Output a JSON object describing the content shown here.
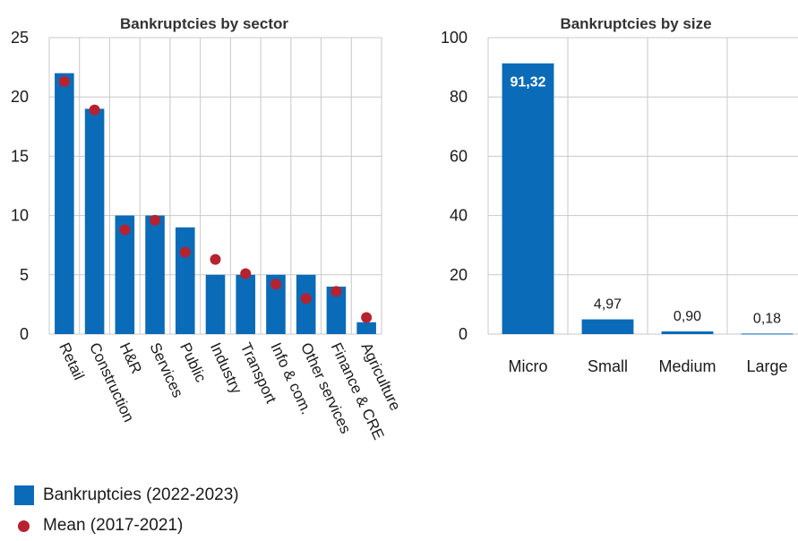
{
  "colors": {
    "bar": "#0a6bb8",
    "dot": "#b7222f",
    "grid": "#c8c8c8"
  },
  "legend": {
    "bar_label": "Bankruptcies (2022-2023)",
    "dot_label": "Mean (2017-2021)"
  },
  "chart_data": [
    {
      "type": "bar",
      "title": "Bankruptcies by sector",
      "categories": [
        "Retail",
        "Construction",
        "H&R",
        "Services",
        "Public",
        "Industry",
        "Transport",
        "Info & com.",
        "Other services",
        "Finance & CRE",
        "Agriculture"
      ],
      "series": [
        {
          "name": "Bankruptcies (2022-2023)",
          "type": "bar",
          "values": [
            22,
            19,
            10,
            10,
            9,
            5,
            5,
            5,
            5,
            4,
            1
          ]
        },
        {
          "name": "Mean (2017-2021)",
          "type": "scatter",
          "values": [
            21.3,
            18.9,
            8.8,
            9.6,
            6.9,
            6.3,
            5.1,
            4.2,
            3.0,
            3.6,
            1.4
          ]
        }
      ],
      "yticks": [
        "0",
        "5",
        "10",
        "15",
        "20",
        "25"
      ],
      "ylim": [
        0,
        25
      ],
      "grid": true
    },
    {
      "type": "bar",
      "title": "Bankruptcies by size",
      "categories": [
        "Micro",
        "Small",
        "Medium",
        "Large"
      ],
      "values": [
        91.32,
        4.97,
        0.9,
        0.18
      ],
      "data_labels": [
        "91,32",
        "4,97",
        "0,90",
        "0,18"
      ],
      "yticks": [
        "0",
        "20",
        "40",
        "60",
        "80",
        "100"
      ],
      "ylim": [
        0,
        100
      ],
      "grid": true
    }
  ]
}
